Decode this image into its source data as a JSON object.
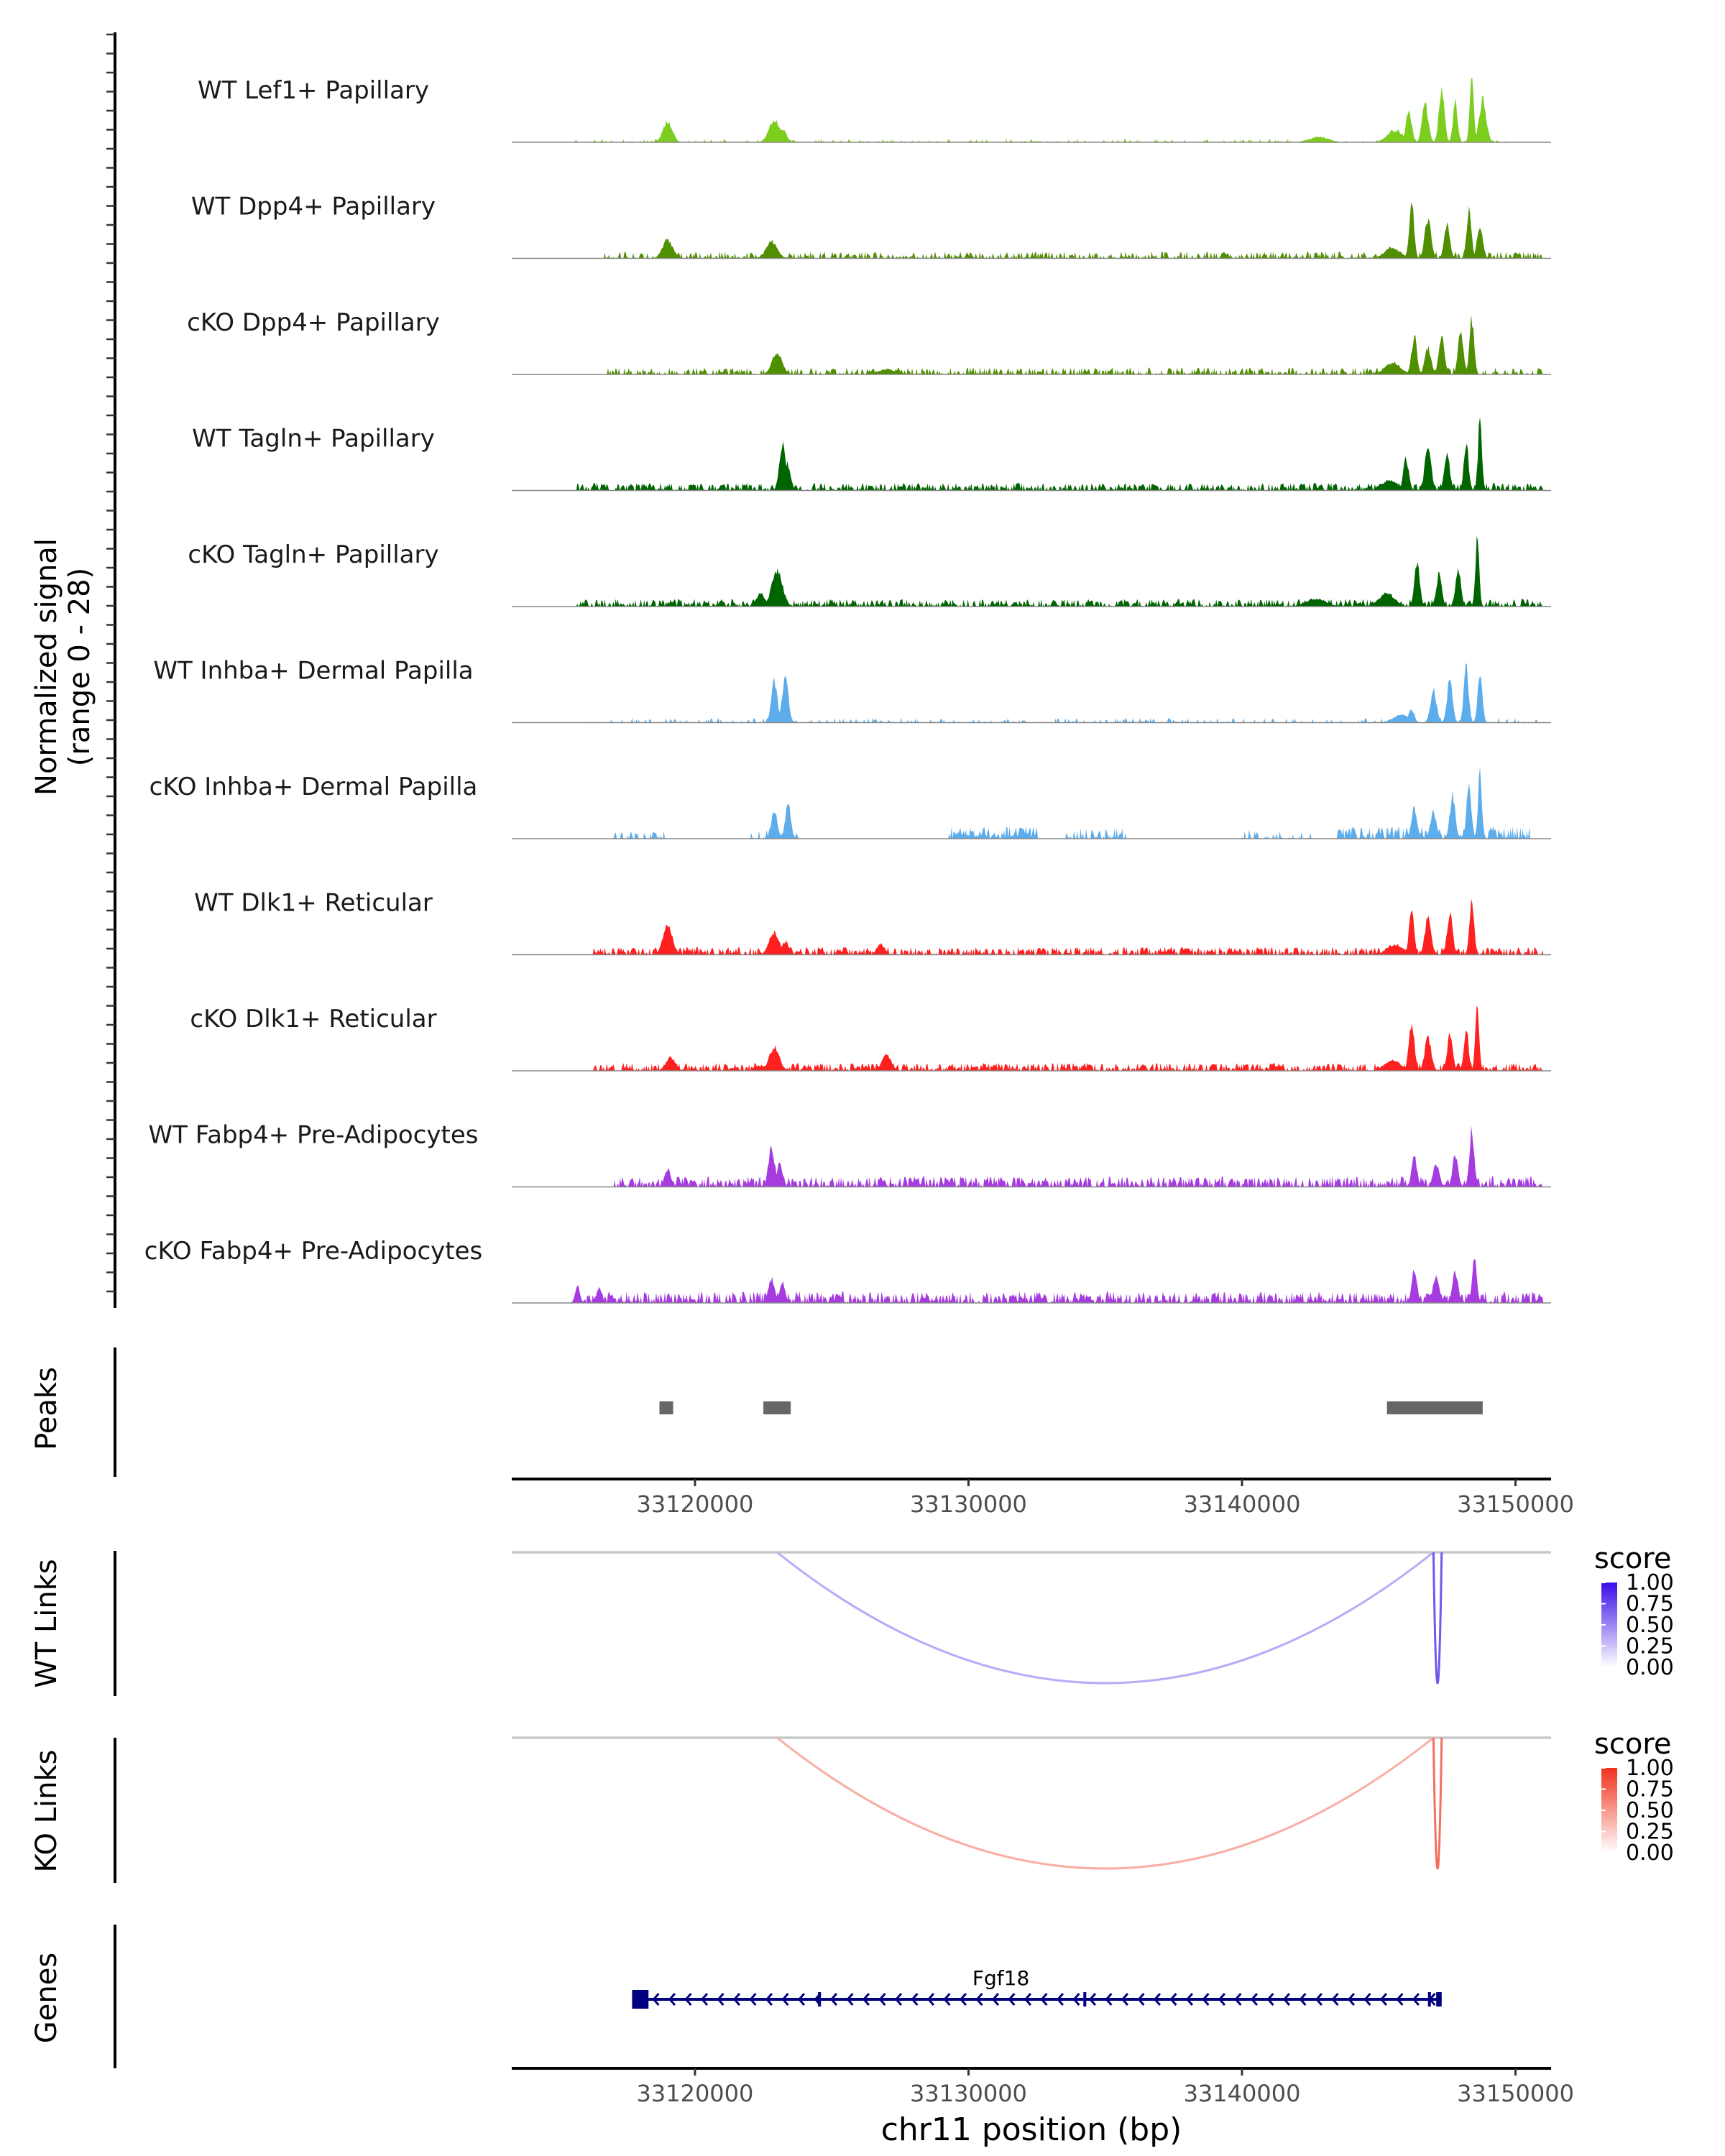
{
  "chart_data": {
    "type": "genome-browser",
    "x_axis": {
      "label": "chr11 position (bp)",
      "range": [
        33113300,
        33151300
      ],
      "ticks": [
        33120000,
        33130000,
        33140000,
        33150000
      ],
      "tick_labels": [
        "33120000",
        "33130000",
        "33140000",
        "33150000"
      ]
    },
    "coverage": {
      "y_label_line1": "Normalized signal",
      "y_label_line2": "(range 0 - 28)",
      "y_range": [
        0,
        28
      ],
      "tracks": [
        {
          "name": "WT Lef1+ Papillary",
          "color": "#7CCD1E",
          "regions": [
            [
              33115000,
              33149800,
              0.3,
              1.0
            ]
          ],
          "peaks": [
            [
              33119000,
              240,
              7.8
            ],
            [
              33122900,
              280,
              8.5
            ],
            [
              33123200,
              200,
              5.0
            ],
            [
              33146100,
              140,
              12.5
            ],
            [
              33146700,
              160,
              14.0
            ],
            [
              33147300,
              140,
              19.0
            ],
            [
              33147800,
              120,
              15.0
            ],
            [
              33148400,
              100,
              26.0
            ],
            [
              33148800,
              180,
              16.0
            ],
            [
              33145600,
              400,
              4.5
            ],
            [
              33142800,
              500,
              2.0
            ]
          ],
          "noise_seed": 11
        },
        {
          "name": "WT Dpp4+ Papillary",
          "color": "#4F8F00",
          "regions": [
            [
              33116700,
              33151000,
              0.6,
              2.3
            ]
          ],
          "peaks": [
            [
              33119000,
              260,
              7.0
            ],
            [
              33122800,
              280,
              6.5
            ],
            [
              33146200,
              120,
              22.0
            ],
            [
              33146800,
              160,
              15.0
            ],
            [
              33147500,
              140,
              13.0
            ],
            [
              33148300,
              120,
              18.0
            ],
            [
              33148700,
              150,
              11.0
            ],
            [
              33145500,
              400,
              4.0
            ]
          ],
          "noise_seed": 23
        },
        {
          "name": "cKO Dpp4+ Papillary",
          "color": "#4F8F00",
          "regions": [
            [
              33116700,
              33151000,
              0.6,
              2.3
            ]
          ],
          "peaks": [
            [
              33123000,
              260,
              8.5
            ],
            [
              33146300,
              140,
              14.0
            ],
            [
              33146800,
              160,
              10.0
            ],
            [
              33147300,
              140,
              15.0
            ],
            [
              33148000,
              140,
              16.0
            ],
            [
              33148400,
              120,
              21.0
            ],
            [
              33145500,
              400,
              4.5
            ],
            [
              33127000,
              400,
              2.0
            ]
          ],
          "noise_seed": 37
        },
        {
          "name": "WT Tagln+ Papillary",
          "color": "#006400",
          "regions": [
            [
              33115700,
              33151000,
              0.8,
              2.5
            ]
          ],
          "peaks": [
            [
              33123200,
              160,
              18.0
            ],
            [
              33123400,
              140,
              10.0
            ],
            [
              33146000,
              140,
              12.0
            ],
            [
              33146800,
              160,
              16.0
            ],
            [
              33147500,
              140,
              13.0
            ],
            [
              33148200,
              120,
              18.0
            ],
            [
              33148700,
              100,
              26.0
            ],
            [
              33145400,
              400,
              4.0
            ]
          ],
          "noise_seed": 51
        },
        {
          "name": "cKO Tagln+ Papillary",
          "color": "#006400",
          "regions": [
            [
              33115700,
              33151000,
              0.8,
              2.5
            ]
          ],
          "peaks": [
            [
              33123000,
              280,
              13.0
            ],
            [
              33122400,
              220,
              5.0
            ],
            [
              33146400,
              140,
              16.0
            ],
            [
              33147200,
              140,
              12.0
            ],
            [
              33147900,
              140,
              14.0
            ],
            [
              33148600,
              100,
              25.0
            ],
            [
              33145300,
              400,
              5.0
            ],
            [
              33142700,
              500,
              3.0
            ]
          ],
          "noise_seed": 63
        },
        {
          "name": "WT Inhba+ Dermal Papilla",
          "color": "#5DADEC",
          "regions": [
            [
              33116000,
              33151000,
              0.3,
              1.5
            ]
          ],
          "peaks": [
            [
              33122900,
              160,
              15.0
            ],
            [
              33123300,
              160,
              17.0
            ],
            [
              33146200,
              140,
              5.0
            ],
            [
              33147000,
              160,
              12.0
            ],
            [
              33147600,
              140,
              16.0
            ],
            [
              33148200,
              120,
              22.0
            ],
            [
              33148700,
              120,
              18.0
            ],
            [
              33145800,
              400,
              3.0
            ]
          ],
          "noise_seed": 71
        },
        {
          "name": "cKO Inhba+ Dermal Papilla",
          "color": "#5DADEC",
          "regions": [
            [
              33117000,
              33119000,
              0.4,
              2.5
            ],
            [
              33122000,
              33123800,
              0.5,
              3.0
            ],
            [
              33129300,
              33132500,
              1.0,
              4.0
            ],
            [
              33133500,
              33135800,
              0.6,
              3.5
            ],
            [
              33140000,
              33142500,
              0.4,
              3.0
            ],
            [
              33143500,
              33150500,
              0.8,
              4.0
            ]
          ],
          "peaks": [
            [
              33122900,
              160,
              10.0
            ],
            [
              33123400,
              140,
              13.0
            ],
            [
              33146300,
              140,
              12.0
            ],
            [
              33147000,
              160,
              10.0
            ],
            [
              33147700,
              140,
              16.0
            ],
            [
              33148300,
              120,
              20.0
            ],
            [
              33148700,
              100,
              24.0
            ]
          ],
          "noise_seed": 83
        },
        {
          "name": "WT Dlk1+ Reticular",
          "color": "#FF2020",
          "regions": [
            [
              33116300,
              33151000,
              0.8,
              2.6
            ]
          ],
          "peaks": [
            [
              33119000,
              240,
              11.0
            ],
            [
              33122900,
              260,
              8.5
            ],
            [
              33123300,
              180,
              5.0
            ],
            [
              33126800,
              200,
              4.0
            ],
            [
              33146200,
              120,
              19.0
            ],
            [
              33146800,
              160,
              14.0
            ],
            [
              33147600,
              140,
              16.0
            ],
            [
              33148400,
              120,
              19.0
            ],
            [
              33145600,
              400,
              4.0
            ]
          ],
          "noise_seed": 97
        },
        {
          "name": "cKO Dlk1+ Reticular",
          "color": "#FF2020",
          "regions": [
            [
              33116300,
              33151000,
              0.8,
              2.6
            ]
          ],
          "peaks": [
            [
              33119100,
              240,
              5.0
            ],
            [
              33122900,
              260,
              9.0
            ],
            [
              33127000,
              240,
              6.0
            ],
            [
              33146200,
              140,
              18.0
            ],
            [
              33146800,
              160,
              13.0
            ],
            [
              33147600,
              140,
              13.0
            ],
            [
              33148200,
              120,
              16.0
            ],
            [
              33148600,
              100,
              23.0
            ],
            [
              33145500,
              400,
              4.0
            ]
          ],
          "noise_seed": 109
        },
        {
          "name": "WT Fabp4+ Pre-Adipocytes",
          "color": "#A63CDF",
          "regions": [
            [
              33117000,
              33151000,
              0.8,
              3.5
            ]
          ],
          "peaks": [
            [
              33119000,
              160,
              6.5
            ],
            [
              33122800,
              160,
              15.0
            ],
            [
              33123100,
              140,
              9.0
            ],
            [
              33146300,
              140,
              11.0
            ],
            [
              33147100,
              160,
              9.0
            ],
            [
              33147800,
              140,
              12.0
            ],
            [
              33148400,
              120,
              22.0
            ]
          ],
          "noise_seed": 127
        },
        {
          "name": "cKO Fabp4+ Pre-Adipocytes",
          "color": "#A63CDF",
          "regions": [
            [
              33115600,
              33151000,
              0.8,
              3.8
            ]
          ],
          "peaks": [
            [
              33115700,
              120,
              6.5
            ],
            [
              33116500,
              120,
              6.0
            ],
            [
              33122800,
              160,
              9.0
            ],
            [
              33123200,
              140,
              8.0
            ],
            [
              33146300,
              140,
              12.0
            ],
            [
              33147100,
              160,
              10.0
            ],
            [
              33147800,
              140,
              12.0
            ],
            [
              33148500,
              120,
              17.0
            ]
          ],
          "noise_seed": 139
        }
      ]
    },
    "peaks_track": {
      "label": "Peaks",
      "color": "#666666",
      "regions": [
        [
          33118700,
          33119200
        ],
        [
          33122500,
          33123500
        ],
        [
          33145300,
          33148800
        ]
      ]
    },
    "links": [
      {
        "label": "WT Links",
        "legend_title": "score",
        "high_color": "#3A0DE8",
        "low_color": "#FFFFFF",
        "legend_ticks": [
          "1.00",
          "0.75",
          "0.50",
          "0.25",
          "0.00"
        ],
        "arcs": [
          {
            "start": 33123000,
            "end": 33147000,
            "score": 0.35
          },
          {
            "start": 33147000,
            "end": 33147300,
            "score": 0.7
          }
        ]
      },
      {
        "label": "KO Links",
        "legend_title": "score",
        "high_color": "#F0311B",
        "low_color": "#FFFFFF",
        "legend_ticks": [
          "1.00",
          "0.75",
          "0.50",
          "0.25",
          "0.00"
        ],
        "arcs": [
          {
            "start": 33123000,
            "end": 33147000,
            "score": 0.4
          },
          {
            "start": 33147000,
            "end": 33147300,
            "score": 0.7
          }
        ]
      }
    ],
    "genes": {
      "label": "Genes",
      "color": "#000080",
      "name": "Fgf18",
      "start": 33117700,
      "end": 33147300,
      "strand": "-",
      "exons": [
        [
          33117700,
          33118300
        ],
        [
          33124500,
          33124600
        ],
        [
          33134200,
          33134300
        ],
        [
          33146800,
          33146900
        ],
        [
          33147100,
          33147300
        ]
      ]
    }
  }
}
